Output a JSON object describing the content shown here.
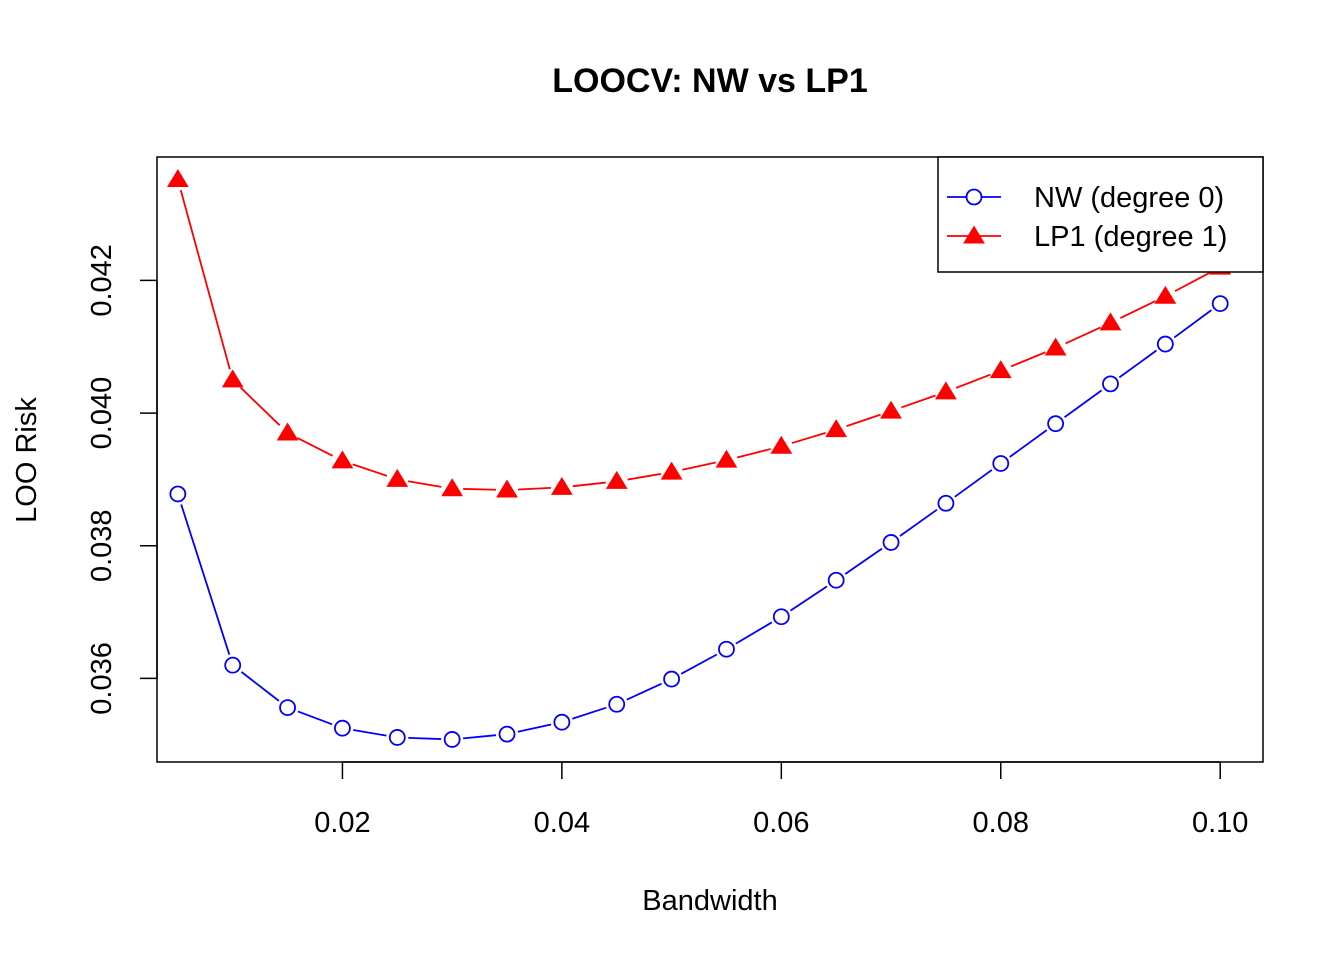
{
  "chart_data": {
    "type": "line",
    "title": "LOOCV: NW vs LP1",
    "xlabel": "Bandwidth",
    "ylabel": "LOO Risk",
    "xlim": [
      0.0031,
      0.1039
    ],
    "ylim": [
      0.03474,
      0.04386
    ],
    "x_ticks": [
      0.02,
      0.04,
      0.06,
      0.08,
      0.1
    ],
    "x_tick_labels": [
      "0.02",
      "0.04",
      "0.06",
      "0.08",
      "0.10"
    ],
    "y_ticks": [
      0.036,
      0.038,
      0.04,
      0.042
    ],
    "y_tick_labels": [
      "0.036",
      "0.038",
      "0.040",
      "0.042"
    ],
    "grid": false,
    "legend_position": "top-right",
    "x": [
      0.005,
      0.01,
      0.015,
      0.02,
      0.025,
      0.03,
      0.035,
      0.04,
      0.045,
      0.05,
      0.055,
      0.06,
      0.065,
      0.07,
      0.075,
      0.08,
      0.085,
      0.09,
      0.095,
      0.1
    ],
    "series": [
      {
        "name": "NW (degree 0)",
        "color": "#0000ff",
        "marker": "open-circle",
        "values": [
          0.03878,
          0.0362,
          0.03556,
          0.03525,
          0.03511,
          0.03508,
          0.03516,
          0.03534,
          0.03561,
          0.03599,
          0.03644,
          0.03693,
          0.03748,
          0.03805,
          0.03864,
          0.03924,
          0.03984,
          0.04044,
          0.04104,
          0.04165
        ]
      },
      {
        "name": "LP1 (degree 1)",
        "color": "#ff0000",
        "marker": "filled-triangle",
        "values": [
          0.04352,
          0.0405,
          0.0397,
          0.03928,
          0.039,
          0.03886,
          0.03884,
          0.03888,
          0.03897,
          0.03911,
          0.03929,
          0.0395,
          0.03975,
          0.04003,
          0.04032,
          0.04064,
          0.04098,
          0.04136,
          0.04176,
          0.0422
        ]
      }
    ]
  }
}
